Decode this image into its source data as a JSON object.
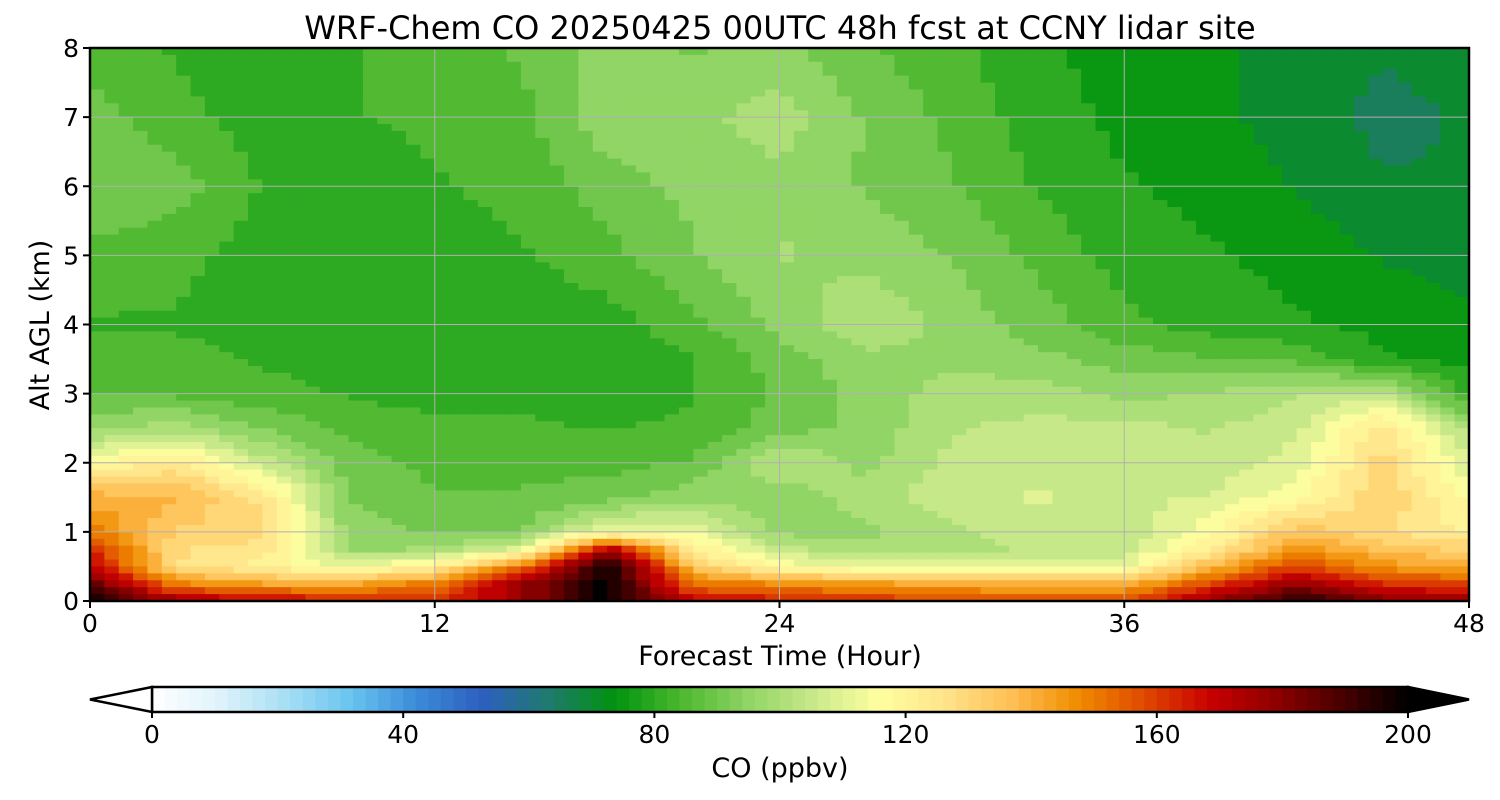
{
  "chart_data": {
    "type": "heatmap",
    "title": "WRF-Chem CO  20250425 00UTC 48h fcst at CCNY lidar site",
    "xlabel": "Forecast Time (Hour)",
    "ylabel": "Alt AGL (km)",
    "xlim": [
      0,
      48
    ],
    "ylim": [
      0,
      8
    ],
    "xticks": [
      "0",
      "12",
      "24",
      "36",
      "48"
    ],
    "yticks": [
      "0",
      "1",
      "2",
      "3",
      "4",
      "5",
      "6",
      "7",
      "8"
    ],
    "grid": true,
    "x": [
      0,
      3,
      6,
      9,
      12,
      15,
      18,
      21,
      24,
      27,
      30,
      33,
      36,
      39,
      42,
      45,
      48
    ],
    "y": [
      0,
      0.25,
      0.5,
      0.75,
      1,
      1.5,
      2,
      2.5,
      3,
      3.5,
      4,
      5,
      6,
      7,
      8
    ],
    "z": [
      [
        200,
        176,
        170,
        166,
        164,
        176,
        200,
        168,
        166,
        162,
        160,
        158,
        158,
        178,
        195,
        180,
        178
      ],
      [
        186,
        148,
        142,
        140,
        150,
        176,
        200,
        152,
        146,
        144,
        140,
        138,
        138,
        158,
        178,
        162,
        158
      ],
      [
        170,
        128,
        120,
        112,
        120,
        150,
        200,
        134,
        116,
        110,
        110,
        112,
        112,
        138,
        160,
        145,
        140
      ],
      [
        165,
        128,
        125,
        96,
        98,
        110,
        172,
        122,
        104,
        100,
        100,
        104,
        104,
        122,
        146,
        136,
        131
      ],
      [
        150,
        132,
        130,
        95,
        92,
        92,
        113,
        112,
        96,
        96,
        101,
        106,
        104,
        116,
        136,
        128,
        122
      ],
      [
        140,
        138,
        126,
        92,
        88,
        88,
        90,
        96,
        94,
        100,
        106,
        108,
        106,
        108,
        116,
        132,
        116
      ],
      [
        116,
        125,
        105,
        90,
        86,
        86,
        86,
        88,
        103,
        96,
        104,
        106,
        106,
        104,
        110,
        130,
        108
      ],
      [
        96,
        100,
        92,
        86,
        84,
        84,
        82,
        84,
        90,
        94,
        102,
        104,
        104,
        102,
        106,
        126,
        100
      ],
      [
        88,
        86,
        84,
        82,
        80,
        80,
        78,
        82,
        88,
        94,
        100,
        100,
        96,
        98,
        102,
        104,
        80
      ],
      [
        84,
        84,
        82,
        80,
        78,
        78,
        78,
        82,
        90,
        96,
        96,
        94,
        90,
        88,
        86,
        78,
        76
      ],
      [
        82,
        82,
        80,
        78,
        78,
        78,
        80,
        86,
        94,
        102,
        96,
        90,
        84,
        80,
        78,
        76,
        74
      ],
      [
        86,
        84,
        80,
        78,
        80,
        82,
        86,
        92,
        98,
        96,
        92,
        86,
        80,
        78,
        76,
        72,
        70
      ],
      [
        92,
        90,
        82,
        78,
        82,
        84,
        90,
        94,
        96,
        92,
        88,
        82,
        78,
        76,
        72,
        68,
        68
      ],
      [
        90,
        84,
        80,
        82,
        84,
        86,
        96,
        96,
        100,
        92,
        86,
        80,
        76,
        74,
        70,
        66,
        68
      ],
      [
        84,
        82,
        80,
        82,
        86,
        88,
        94,
        92,
        94,
        88,
        84,
        78,
        76,
        74,
        70,
        68,
        70
      ]
    ],
    "colorbar": {
      "label": "CO  (ppbv)",
      "range": [
        0,
        200
      ],
      "ticks": [
        "0",
        "40",
        "80",
        "120",
        "160",
        "200"
      ],
      "extend": "both",
      "colors": [
        "#ffffff",
        "#dff3fb",
        "#a9dff5",
        "#69c5ef",
        "#3a8bd8",
        "#2e5fbf",
        "#1f7a6e",
        "#00930f",
        "#4cb82e",
        "#8fd464",
        "#c8e98a",
        "#ffffa0",
        "#ffe38a",
        "#ffc055",
        "#f08c00",
        "#e04a00",
        "#c80000",
        "#8e0000",
        "#480000",
        "#000000"
      ]
    }
  }
}
